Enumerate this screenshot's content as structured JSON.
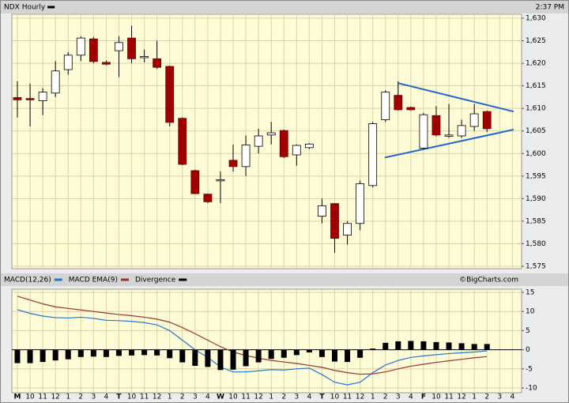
{
  "header": {
    "title": "NDX Hourly",
    "time": "2:37 PM"
  },
  "chart_data": [
    {
      "type": "candlestick",
      "categories": [
        "M",
        "10",
        "11",
        "12",
        "1",
        "2",
        "3",
        "4",
        "T",
        "10",
        "11",
        "12",
        "1",
        "2",
        "3",
        "4",
        "W",
        "10",
        "11",
        "12",
        "1",
        "2",
        "3",
        "4",
        "T",
        "10",
        "11",
        "12",
        "1",
        "2",
        "3",
        "4",
        "F",
        "10",
        "11",
        "12",
        "1",
        "2",
        "3",
        "4"
      ],
      "open": [
        1612.4,
        1612.2,
        1611.7,
        1613.4,
        1618.6,
        1621.8,
        1625.4,
        1620.2,
        1622.8,
        1625.6,
        1621.4,
        1621,
        1619.3,
        1607.8,
        1596.2,
        1591,
        1594,
        1598.5,
        1597.1,
        1601.6,
        1604.1,
        1605.1,
        1599.7,
        1601.3,
        1586.1,
        1588.9,
        1581.9,
        1584.5,
        1592.9,
        1607.5,
        1612.9,
        1610.2,
        1601.2,
        1608.4,
        1603.9,
        1603.9,
        1606,
        1609.3,
        null,
        null
      ],
      "high": [
        1616,
        1615.5,
        1614.5,
        1620.5,
        1622.5,
        1626,
        1625.8,
        1620.6,
        1626,
        1628.3,
        1623,
        1625,
        1619.5,
        1608,
        1596.4,
        1591.1,
        1596,
        1602,
        1604,
        1605.5,
        1607,
        1605.3,
        1602,
        1602.3,
        1590,
        1589,
        1585,
        1594,
        1607,
        1614,
        1616,
        1610.4,
        1609,
        1610.5,
        1611,
        1607.5,
        1611,
        1609.5,
        null,
        null
      ],
      "low": [
        1608,
        1606,
        1608.5,
        1612.5,
        1617.5,
        1620.5,
        1620,
        1619.6,
        1617,
        1620,
        1620.2,
        1618.8,
        1606,
        1597.4,
        1591,
        1589,
        1589,
        1596,
        1595,
        1600,
        1602,
        1599,
        1597.3,
        1601,
        1584.5,
        1578,
        1579.8,
        1583,
        1592.5,
        1607,
        1609.5,
        1609.5,
        1601,
        1603.8,
        1603.5,
        1603.5,
        1605,
        1604.8,
        null,
        null
      ],
      "close": [
        1611.9,
        1611.9,
        1613.6,
        1618.3,
        1621.8,
        1625.6,
        1620.4,
        1619.8,
        1624.6,
        1621,
        1621.5,
        1619.1,
        1606.9,
        1597.6,
        1591.1,
        1589.3,
        1594.2,
        1597.1,
        1601.9,
        1603.9,
        1604.6,
        1599.3,
        1601.8,
        1602.1,
        1588.4,
        1581.2,
        1584.5,
        1593.3,
        1606.6,
        1613.6,
        1609.7,
        1609.7,
        1608.6,
        1604.1,
        1604.1,
        1606.2,
        1608.8,
        1605.5,
        null,
        null
      ],
      "up_color": "#ffffff",
      "down_color": "#a00000",
      "trendlines": [
        {
          "x": [
            30,
            39.1
          ],
          "y": [
            1615.6,
            1609.3
          ],
          "color": "#2266cc"
        },
        {
          "x": [
            28.95,
            39.1
          ],
          "y": [
            1599.1,
            1605.3
          ],
          "color": "#2266cc"
        }
      ],
      "ylim": [
        1575,
        1630
      ],
      "yticks": [
        {
          "value": 1575,
          "label": "1,575"
        },
        {
          "value": 1580,
          "label": "1,580"
        },
        {
          "value": 1585,
          "label": "1,585"
        },
        {
          "value": 1590,
          "label": "1,590"
        },
        {
          "value": 1595,
          "label": "1,595"
        },
        {
          "value": 1600,
          "label": "1,600"
        },
        {
          "value": 1605,
          "label": "1,605"
        },
        {
          "value": 1610,
          "label": "1,610"
        },
        {
          "value": 1615,
          "label": "1,615"
        },
        {
          "value": 1620,
          "label": "1,620"
        },
        {
          "value": 1625,
          "label": "1,625"
        },
        {
          "value": 1630,
          "label": "1,630"
        }
      ],
      "grid": true
    },
    {
      "type": "macd",
      "series": [
        {
          "name": "MACD(12,26)",
          "color": "#2277cc",
          "style": "line",
          "values": [
            10.5,
            9.5,
            8.8,
            8.4,
            8.3,
            8.5,
            8.2,
            7.7,
            7.6,
            7.4,
            7.1,
            6.5,
            5,
            2.5,
            0,
            -2,
            -4.5,
            -5.8,
            -5.8,
            -5.5,
            -5.2,
            -5.3,
            -5,
            -4.8,
            -6.5,
            -8.5,
            -9.2,
            -8.5,
            -6,
            -4,
            -2.8,
            -2,
            -1.6,
            -1.3,
            -1,
            -0.8,
            -0.6,
            -0.3,
            null,
            null
          ]
        },
        {
          "name": "MACD EMA(9)",
          "color": "#993333",
          "style": "line",
          "values": [
            14,
            13,
            12,
            11.2,
            10.8,
            10.4,
            10,
            9.6,
            9.2,
            8.9,
            8.5,
            8,
            7.2,
            5.8,
            4.2,
            2.5,
            0.8,
            -0.6,
            -1.5,
            -2.2,
            -2.8,
            -3.2,
            -3.6,
            -4.1,
            -4.6,
            -5.4,
            -6,
            -6.4,
            -6.3,
            -5.8,
            -5,
            -4.3,
            -3.8,
            -3.3,
            -2.9,
            -2.5,
            -2.1,
            -1.8,
            null,
            null
          ]
        },
        {
          "name": "Divergence",
          "color": "#000000",
          "style": "bar",
          "values": [
            -3.5,
            -3.5,
            -3.2,
            -2.8,
            -2.5,
            -1.9,
            -1.8,
            -1.9,
            -1.6,
            -1.5,
            -1.4,
            -1.5,
            -2.2,
            -3.3,
            -4.2,
            -4.5,
            -5.3,
            -5.2,
            -4.3,
            -3.3,
            -2.4,
            -2.1,
            -1.4,
            -0.7,
            -1.9,
            -3.1,
            -3.2,
            -2.1,
            0.3,
            1.8,
            2.2,
            2.3,
            2.2,
            2,
            1.9,
            1.7,
            1.5,
            1.5,
            null,
            null
          ]
        }
      ],
      "source": "©BigCharts.com",
      "ylim": [
        -10,
        15
      ],
      "yticks": [
        -10,
        -5,
        0,
        5,
        10,
        15
      ],
      "grid": true
    }
  ]
}
